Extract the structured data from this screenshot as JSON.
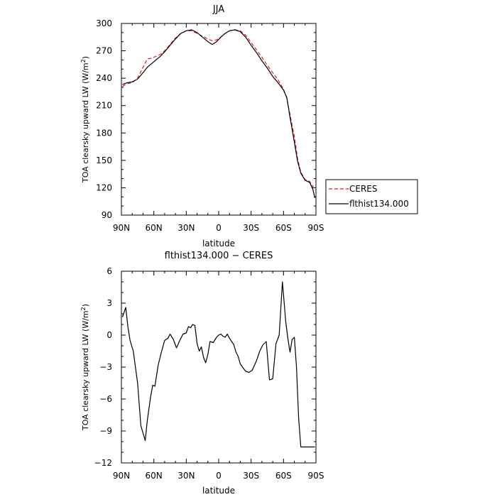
{
  "chart_data": [
    {
      "type": "line",
      "title": "JJA",
      "xlabel": "latitude",
      "ylabel": "TOA clearsky upward LW (W/m",
      "ylabel_sup": "2",
      "ylabel_end": ")",
      "xlim": [
        90,
        -90
      ],
      "ylim": [
        90,
        300
      ],
      "x_ticks": [
        90,
        60,
        30,
        0,
        -30,
        -60,
        -90
      ],
      "x_tick_labels": [
        "90N",
        "60N",
        "30N",
        "0",
        "30S",
        "60S",
        "90S"
      ],
      "y_ticks": [
        90,
        120,
        150,
        180,
        210,
        240,
        270,
        300
      ],
      "y_tick_labels": [
        "90",
        "120",
        "150",
        "180",
        "210",
        "240",
        "270",
        "300"
      ],
      "legend": [
        "CERES",
        "flthist134.000"
      ],
      "legend_position": "right, outside",
      "series": [
        {
          "name": "CERES",
          "style": "dashed",
          "color": "#e41a1c",
          "x": [
            89,
            85,
            80,
            75,
            70,
            66,
            62,
            58,
            54,
            50,
            45,
            40,
            35,
            30,
            25,
            20,
            15,
            10,
            6,
            2,
            -2,
            -6,
            -10,
            -15,
            -20,
            -25,
            -30,
            -35,
            -40,
            -45,
            -50,
            -55,
            -60,
            -63,
            -66,
            -70,
            -73,
            -76,
            -80,
            -84,
            -87,
            -89
          ],
          "y": [
            231,
            234,
            235,
            240,
            252,
            261,
            262,
            264,
            266,
            270,
            277,
            284,
            289,
            292,
            292,
            289,
            286,
            283,
            281,
            282,
            285,
            289,
            292,
            293,
            292,
            287,
            279,
            271,
            263,
            254,
            246,
            238,
            228,
            218,
            200,
            176,
            152,
            137,
            129,
            127,
            122,
            117
          ]
        },
        {
          "name": "flthist134.000",
          "style": "solid",
          "color": "#000000",
          "x": [
            89,
            85,
            80,
            75,
            70,
            66,
            62,
            58,
            54,
            50,
            45,
            40,
            35,
            30,
            25,
            20,
            15,
            10,
            6,
            2,
            -2,
            -6,
            -10,
            -15,
            -20,
            -25,
            -30,
            -35,
            -40,
            -45,
            -50,
            -55,
            -60,
            -63,
            -66,
            -70,
            -73,
            -76,
            -80,
            -84,
            -87,
            -89
          ],
          "y": [
            233,
            235,
            236,
            239,
            246,
            252,
            256,
            260,
            264,
            269,
            276,
            283,
            289,
            292,
            293,
            290,
            285,
            280,
            277,
            280,
            285,
            289,
            292,
            293,
            291,
            285,
            276,
            268,
            259,
            251,
            242,
            235,
            227,
            219,
            197,
            170,
            149,
            136,
            128,
            126,
            119,
            109
          ]
        }
      ]
    },
    {
      "type": "line",
      "title": "flthist134.000 − CERES",
      "xlabel": "latitude",
      "ylabel": "TOA clearsky upward LW (W/m",
      "ylabel_sup": "2",
      "ylabel_end": ")",
      "xlim": [
        90,
        -90
      ],
      "ylim": [
        -12,
        6
      ],
      "x_ticks": [
        90,
        60,
        30,
        0,
        -30,
        -60,
        -90
      ],
      "x_tick_labels": [
        "90N",
        "60N",
        "30N",
        "0",
        "30S",
        "60S",
        "90S"
      ],
      "y_ticks": [
        -12,
        -9,
        -6,
        -3,
        0,
        3,
        6
      ],
      "y_tick_labels": [
        "−12",
        "−9",
        "−6",
        "−3",
        "0",
        "3",
        "6"
      ],
      "series": [
        {
          "style": "solid",
          "color": "#000000",
          "x": [
            89,
            86,
            84,
            82,
            79,
            75,
            72,
            68,
            66,
            63,
            61,
            59,
            56,
            53,
            50,
            47,
            45,
            42,
            39,
            36,
            33,
            30,
            28,
            26,
            24,
            22,
            20,
            18,
            16,
            14,
            12,
            10,
            8,
            5,
            2,
            0,
            -2,
            -4,
            -6,
            -8,
            -10,
            -12,
            -14,
            -16,
            -18,
            -20,
            -22,
            -25,
            -28,
            -31,
            -35,
            -38,
            -41,
            -44,
            -47,
            -50,
            -53,
            -56,
            -59,
            -62,
            -64,
            -66,
            -68,
            -70,
            -72,
            -74,
            -76,
            -78,
            -80,
            -82,
            -84,
            -86,
            -88,
            -89
          ],
          "y": [
            1.7,
            2.6,
            0.8,
            -0.5,
            -1.5,
            -4.5,
            -8.5,
            -9.9,
            -8.0,
            -5.8,
            -4.7,
            -4.8,
            -2.8,
            -1.6,
            -0.5,
            -0.3,
            0.1,
            -0.4,
            -1.2,
            -0.5,
            0.1,
            0.2,
            0.8,
            0.7,
            1.0,
            0.9,
            -0.8,
            -1.5,
            -1.1,
            -2.1,
            -2.6,
            -1.8,
            -0.6,
            -0.7,
            -0.2,
            0.0,
            0.1,
            -0.1,
            -0.2,
            0.1,
            -0.3,
            -0.6,
            -0.9,
            -1.6,
            -2.0,
            -2.7,
            -3.0,
            -3.4,
            -3.5,
            -3.3,
            -2.4,
            -1.5,
            -0.9,
            -0.6,
            -4.2,
            -4.1,
            -0.8,
            0.0,
            5.0,
            1.3,
            -0.3,
            -1.6,
            -0.4,
            -0.2,
            -3.0,
            -7.8,
            -10.5,
            -10.5,
            -10.5,
            -10.5,
            -10.5,
            -10.5,
            -10.5,
            -10.5
          ]
        }
      ]
    }
  ]
}
